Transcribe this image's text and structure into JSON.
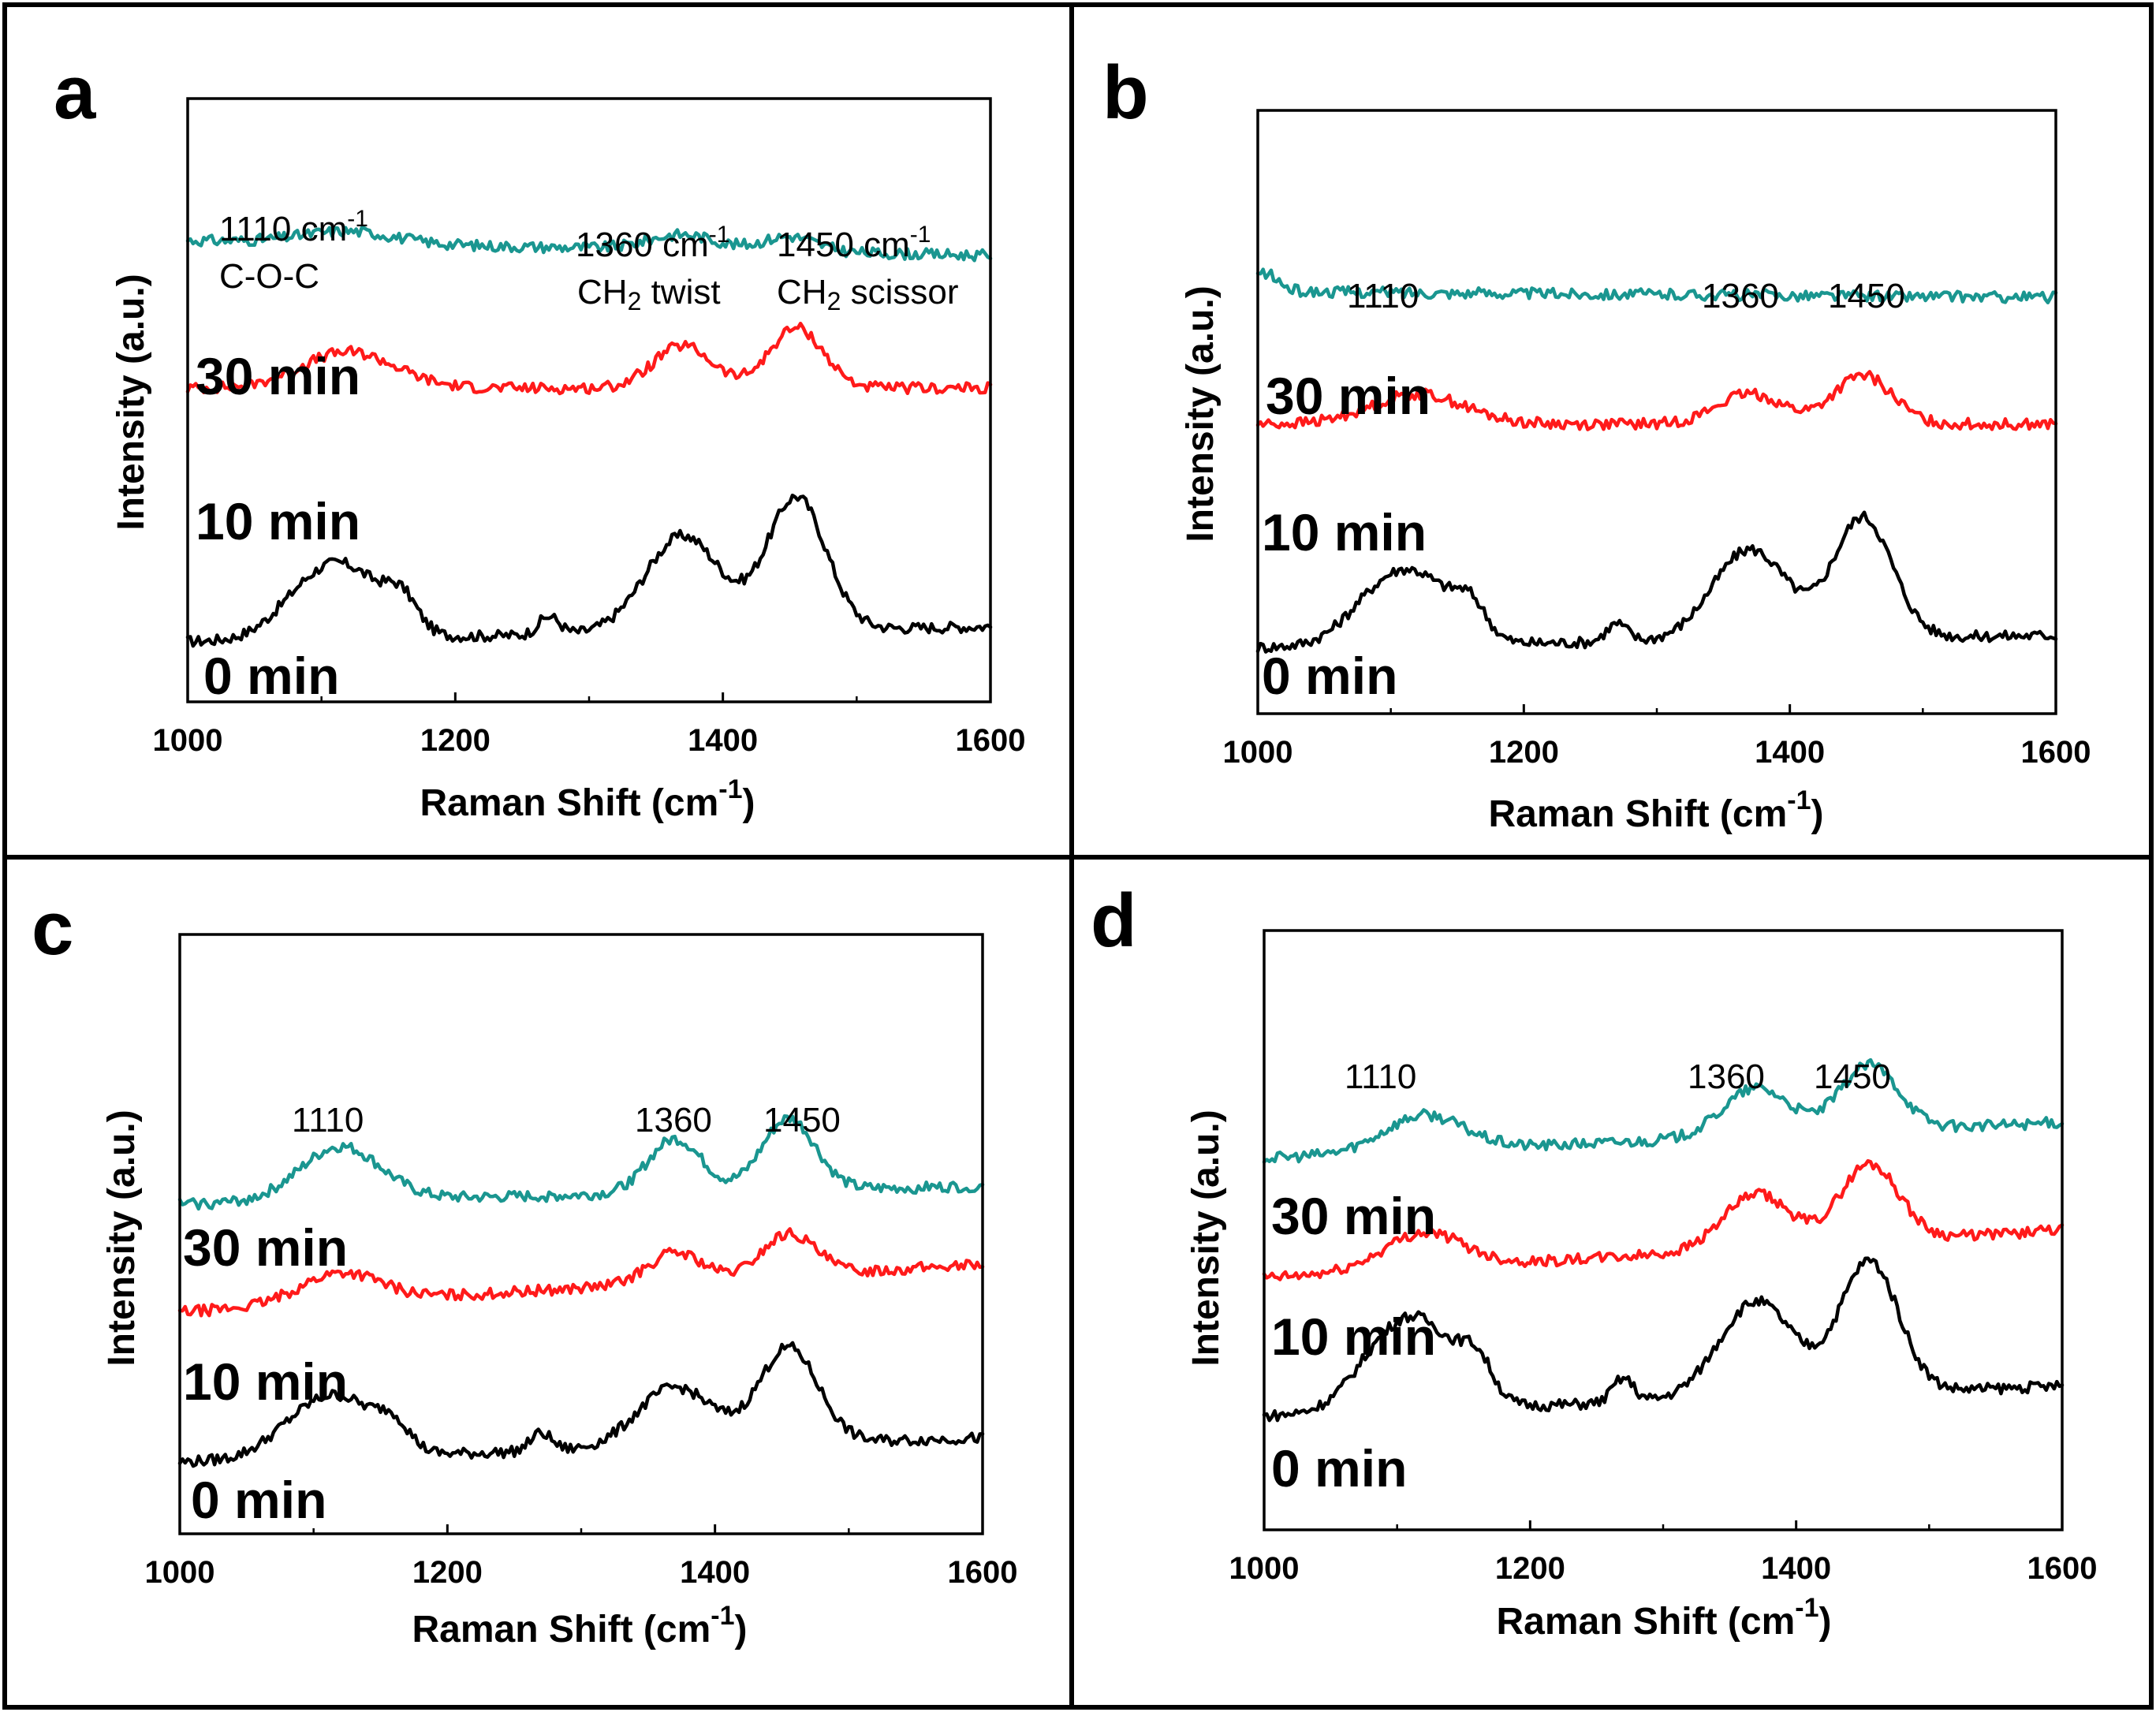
{
  "colors": {
    "t0": "#000000",
    "t10": "#ff1a1a",
    "t30": "#1a9690"
  },
  "chart_data": [
    {
      "panel": "a",
      "type": "line",
      "xlabel": "Raman Shift (cm",
      "xlabel_sup": "-1",
      "xlabel_close": ")",
      "ylabel": "Intensity (a.u.)",
      "xlim": [
        1000,
        1600
      ],
      "ylim": [
        0,
        10
      ],
      "xticks": [
        "1000",
        "1200",
        "1400",
        "1600"
      ],
      "series": [
        {
          "name": "0 min",
          "color": "#000000",
          "baseline": 1.0,
          "peaks": [
            [
              1090,
              0.7,
              25
            ],
            [
              1125,
              0.9,
              25
            ],
            [
              1160,
              0.5,
              12
            ],
            [
              1270,
              0.3,
              8
            ],
            [
              1370,
              1.6,
              28
            ],
            [
              1455,
              2.2,
              22
            ]
          ],
          "slope": 0.25
        },
        {
          "name": "10 min",
          "color": "#ff1a1a",
          "baseline": 5.2,
          "peaks": [
            [
              1120,
              0.6,
              35
            ],
            [
              1370,
              0.7,
              22
            ],
            [
              1455,
              1.0,
              20
            ]
          ],
          "slope": 0.0
        },
        {
          "name": "30 min",
          "color": "#1a9690",
          "baseline": 7.65,
          "peaks": [
            [
              1120,
              0.2,
              35
            ],
            [
              1370,
              0.25,
              25
            ],
            [
              1450,
              0.25,
              20
            ]
          ],
          "slope": -0.25
        }
      ],
      "annotations": [
        {
          "line1": "1110 cm",
          "line1_sup": "-1",
          "line2": "C-O-C"
        },
        {
          "line1": "1360 cm",
          "line1_sup": "-1",
          "line2": "CH",
          "line2_sub": "2",
          "line2_rest": " twist"
        },
        {
          "line1": "1450 cm",
          "line1_sup": "-1",
          "line2": "CH",
          "line2_sub": "2",
          "line2_rest": " scissor"
        }
      ]
    },
    {
      "panel": "b",
      "type": "line",
      "xlabel": "Raman Shift (cm",
      "xlabel_sup": "-1",
      "xlabel_close": ")",
      "ylabel": "Intensity (a.u.)",
      "xlim": [
        1000,
        1600
      ],
      "ylim": [
        0,
        10
      ],
      "xticks": [
        "1000",
        "1200",
        "1400",
        "1600"
      ],
      "series": [
        {
          "name": "0 min",
          "color": "#000000",
          "baseline": 1.1,
          "peaks": [
            [
              1090,
              0.7,
              25
            ],
            [
              1125,
              0.9,
              25
            ],
            [
              1160,
              0.5,
              12
            ],
            [
              1270,
              0.3,
              8
            ],
            [
              1370,
              1.5,
              28
            ],
            [
              1455,
              2.0,
              22
            ]
          ],
          "slope": 0.2
        },
        {
          "name": "10 min",
          "color": "#ff1a1a",
          "baseline": 4.8,
          "peaks": [
            [
              1120,
              0.5,
              35
            ],
            [
              1370,
              0.5,
              25
            ],
            [
              1455,
              0.8,
              22
            ]
          ],
          "slope": 0.0
        },
        {
          "name": "30 min",
          "color": "#1a9690",
          "baseline": 7.0,
          "peaks": [
            [
              1005,
              0.3,
              10
            ]
          ],
          "slope": -0.1
        }
      ],
      "annotations": [
        {
          "line1": "1110"
        },
        {
          "line1": "1360"
        },
        {
          "line1": "1450"
        }
      ]
    },
    {
      "panel": "c",
      "type": "line",
      "xlabel": "Raman Shift (cm",
      "xlabel_sup": "-1",
      "xlabel_close": ")",
      "ylabel": "Intensity (a.u.)",
      "xlim": [
        1000,
        1600
      ],
      "ylim": [
        0,
        10
      ],
      "xticks": [
        "1000",
        "1200",
        "1400",
        "1600"
      ],
      "series": [
        {
          "name": "0 min",
          "color": "#000000",
          "baseline": 1.2,
          "peaks": [
            [
              1090,
              0.5,
              25
            ],
            [
              1125,
              0.8,
              25
            ],
            [
              1160,
              0.4,
              12
            ],
            [
              1270,
              0.3,
              8
            ],
            [
              1370,
              1.0,
              28
            ],
            [
              1455,
              1.6,
              22
            ]
          ],
          "slope": 0.4
        },
        {
          "name": "10 min",
          "color": "#ff1a1a",
          "baseline": 3.7,
          "peaks": [
            [
              1120,
              0.5,
              30
            ],
            [
              1370,
              0.5,
              20
            ],
            [
              1455,
              0.7,
              20
            ]
          ],
          "slope": 0.8
        },
        {
          "name": "30 min",
          "color": "#1a9690",
          "baseline": 5.5,
          "peaks": [
            [
              1120,
              0.9,
              30
            ],
            [
              1370,
              0.9,
              20
            ],
            [
              1455,
              1.2,
              20
            ]
          ],
          "slope": 0.3
        }
      ],
      "annotations": [
        {
          "line1": "1110"
        },
        {
          "line1": "1360"
        },
        {
          "line1": "1450"
        }
      ]
    },
    {
      "panel": "d",
      "type": "line",
      "xlabel": "Raman Shift (cm",
      "xlabel_sup": "-1",
      "xlabel_close": ")",
      "ylabel": "Intensity (a.u.)",
      "xlim": [
        1000,
        1600
      ],
      "ylim": [
        0,
        10
      ],
      "xticks": [
        "1000",
        "1200",
        "1400",
        "1600"
      ],
      "series": [
        {
          "name": "0 min",
          "color": "#000000",
          "baseline": 1.9,
          "peaks": [
            [
              1090,
              0.9,
              25
            ],
            [
              1125,
              1.1,
              25
            ],
            [
              1160,
              0.6,
              12
            ],
            [
              1270,
              0.4,
              8
            ],
            [
              1370,
              1.6,
              28
            ],
            [
              1455,
              2.2,
              22
            ]
          ],
          "slope": 0.5
        },
        {
          "name": "10 min",
          "color": "#ff1a1a",
          "baseline": 4.2,
          "peaks": [
            [
              1120,
              0.6,
              30
            ],
            [
              1370,
              0.9,
              25
            ],
            [
              1455,
              1.3,
              22
            ]
          ],
          "slope": 0.8
        },
        {
          "name": "30 min",
          "color": "#1a9690",
          "baseline": 6.2,
          "peaks": [
            [
              1120,
              0.6,
              30
            ],
            [
              1370,
              0.8,
              25
            ],
            [
              1455,
              1.1,
              22
            ]
          ],
          "slope": 0.6
        }
      ],
      "annotations": [
        {
          "line1": "1110"
        },
        {
          "line1": "1360"
        },
        {
          "line1": "1450"
        }
      ]
    }
  ]
}
